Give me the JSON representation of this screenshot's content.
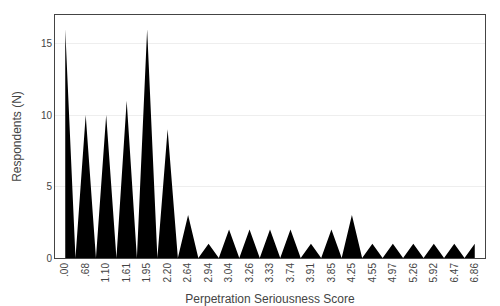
{
  "chart_data": {
    "type": "area",
    "categories": [
      ".00",
      ".68",
      "1.10",
      "1.61",
      "1.95",
      "2.20",
      "2.64",
      "2.94",
      "3.04",
      "3.26",
      "3.33",
      "3.74",
      "3.91",
      "3.85",
      "4.25",
      "4.55",
      "4.97",
      "5.26",
      "5.92",
      "6.47",
      "6.86"
    ],
    "values": [
      16,
      10,
      10,
      11,
      16,
      9,
      3,
      1,
      2,
      2,
      2,
      2,
      1,
      2,
      3,
      1,
      1,
      1,
      1,
      1,
      1
    ],
    "color": "#000000",
    "xlabel": "Perpetration Seriousness Score",
    "ylabel": "Respondents (N)",
    "ylim": [
      0,
      17
    ],
    "yticks": [
      0,
      5,
      10,
      15
    ],
    "grid": true
  }
}
